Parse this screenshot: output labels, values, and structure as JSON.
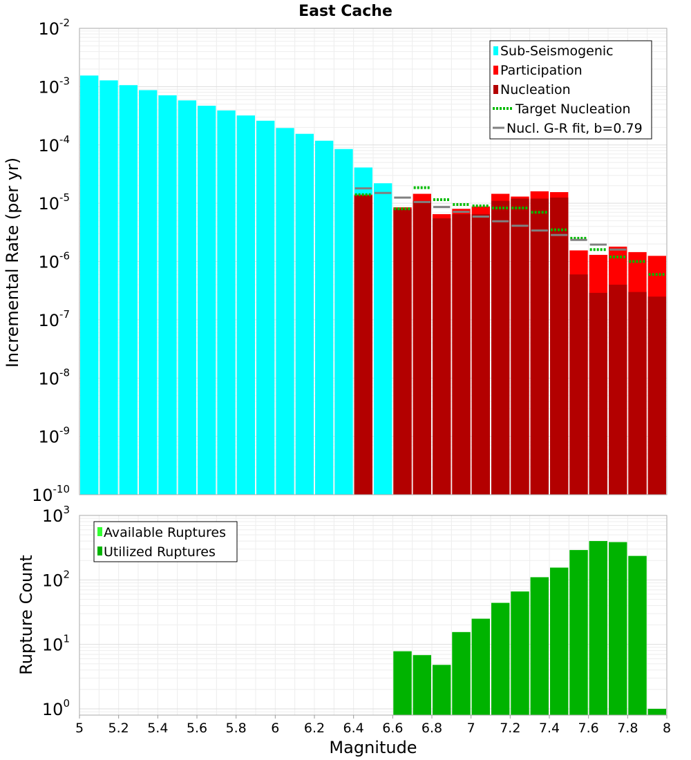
{
  "chart_data": [
    {
      "type": "bar",
      "title": "East Cache",
      "ylabel": "Incremental Rate (per yr)",
      "xlabel": "",
      "yscale": "log",
      "ylim": [
        1e-10,
        0.01
      ],
      "xlim": [
        5,
        8
      ],
      "ytick_exponents": [
        -10,
        -9,
        -8,
        -7,
        -6,
        -5,
        -4,
        -3,
        -2
      ],
      "bin_centers": [
        5.05,
        5.15,
        5.25,
        5.35,
        5.45,
        5.55,
        5.65,
        5.75,
        5.85,
        5.95,
        6.05,
        6.15,
        6.25,
        6.35,
        6.45,
        6.55,
        6.65,
        6.75,
        6.85,
        6.95,
        7.05,
        7.15,
        7.25,
        7.35,
        7.45,
        7.55,
        7.65,
        7.75,
        7.85,
        7.95
      ],
      "series": [
        {
          "name": "Sub-Seismogenic",
          "color": "#00ffff",
          "style": "bar",
          "values": [
            0.00155,
            0.00128,
            0.00106,
            0.00087,
            0.00071,
            0.00058,
            0.00047,
            0.00039,
            0.00032,
            0.00026,
            0.000195,
            0.000155,
            0.000118,
            8.5e-05,
            4.1e-05,
            2.2e-05,
            null,
            null,
            null,
            null,
            null,
            null,
            null,
            null,
            null,
            null,
            null,
            null,
            null,
            null
          ]
        },
        {
          "name": "Participation",
          "color": "#ff0000",
          "style": "bar",
          "values": [
            null,
            null,
            null,
            null,
            null,
            null,
            null,
            null,
            null,
            null,
            null,
            null,
            null,
            null,
            1.4e-05,
            null,
            8.5e-06,
            1.45e-05,
            6.5e-06,
            8e-06,
            8.8e-06,
            1.45e-05,
            1.3e-05,
            1.6e-05,
            1.55e-05,
            1.55e-06,
            1.3e-06,
            1.8e-06,
            1.45e-06,
            1.25e-06
          ]
        },
        {
          "name": "Nucleation",
          "color": "#b30000",
          "style": "bar",
          "values": [
            null,
            null,
            null,
            null,
            null,
            null,
            null,
            null,
            null,
            null,
            null,
            null,
            null,
            null,
            1.35e-05,
            null,
            8e-06,
            1.1e-05,
            5.5e-06,
            6.5e-06,
            6.5e-06,
            1.1e-05,
            1.2e-05,
            1.2e-05,
            1.25e-05,
            6e-07,
            2.9e-07,
            4e-07,
            3e-07,
            2.5e-07
          ]
        },
        {
          "name": "Target Nucleation",
          "color": "#00bb00",
          "style": "dotted",
          "values": [
            null,
            null,
            null,
            null,
            null,
            null,
            null,
            null,
            null,
            null,
            null,
            null,
            null,
            null,
            1.4e-05,
            null,
            8e-06,
            1.85e-05,
            1.15e-05,
            9.5e-06,
            9e-06,
            8.3e-06,
            8.3e-06,
            7e-06,
            3.5e-06,
            2.5e-06,
            1.6e-06,
            1.2e-06,
            1e-06,
            6e-07
          ]
        },
        {
          "name": "Nucl. G-R fit, b=0.79",
          "color": "#808080",
          "style": "solid",
          "values": [
            null,
            null,
            null,
            null,
            null,
            null,
            null,
            null,
            null,
            null,
            null,
            null,
            null,
            null,
            1.8e-05,
            1.5e-05,
            1.25e-05,
            1.05e-05,
            8.6e-06,
            7.1e-06,
            5.9e-06,
            4.9e-06,
            4.1e-06,
            3.4e-06,
            2.85e-06,
            2.35e-06,
            1.95e-06,
            1.6e-06,
            null,
            null
          ]
        }
      ],
      "legend": {
        "position": "top-right",
        "entries": [
          "Sub-Seismogenic",
          "Participation",
          "Nucleation",
          "Target Nucleation",
          "Nucl. G-R fit, b=0.79"
        ]
      }
    },
    {
      "type": "bar",
      "title": "",
      "ylabel": "Rupture Count",
      "xlabel": "Magnitude",
      "yscale": "log",
      "ylim": [
        0.8,
        1000
      ],
      "xlim": [
        5,
        8
      ],
      "ytick_exponents": [
        0,
        1,
        2,
        3
      ],
      "xticks": [
        5,
        5.2,
        5.4,
        5.6,
        5.8,
        6,
        6.2,
        6.4,
        6.6,
        6.8,
        7,
        7.2,
        7.4,
        7.6,
        7.8,
        8
      ],
      "xtick_labels": [
        "5",
        "5.2",
        "5.4",
        "5.6",
        "5.8",
        "6",
        "6.2",
        "6.4",
        "6.6",
        "6.8",
        "7",
        "7.2",
        "7.4",
        "7.6",
        "7.8",
        "8"
      ],
      "bin_centers": [
        6.65,
        6.75,
        6.85,
        6.95,
        7.05,
        7.15,
        7.25,
        7.35,
        7.45,
        7.55,
        7.65,
        7.75,
        7.85,
        7.95
      ],
      "series": [
        {
          "name": "Available Ruptures",
          "color": "#33ff33",
          "style": "bar",
          "values": [
            7.8,
            6.8,
            4.8,
            15.5,
            25,
            44,
            66,
            110,
            155,
            290,
            400,
            385,
            235,
            1
          ]
        },
        {
          "name": "Utilized Ruptures",
          "color": "#00b300",
          "style": "bar",
          "values": [
            7.8,
            6.8,
            4.8,
            15.5,
            25,
            44,
            66,
            110,
            155,
            290,
            400,
            385,
            235,
            1
          ]
        }
      ],
      "legend": {
        "position": "top-left",
        "entries": [
          "Available Ruptures",
          "Utilized Ruptures"
        ]
      }
    }
  ]
}
